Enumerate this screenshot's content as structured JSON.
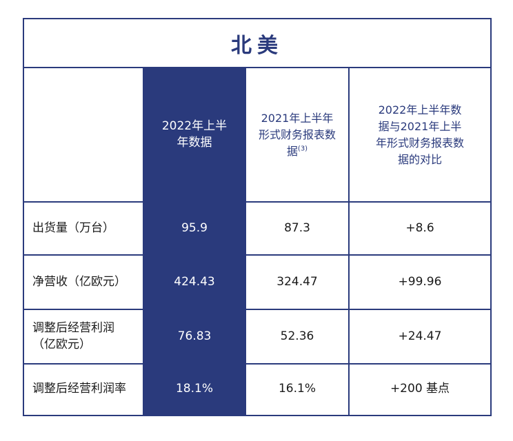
{
  "title": "北美",
  "headers": {
    "col1": "2022年上半年数据",
    "col2": "2021年上半年形式财务报表数据",
    "col2_sup": "(3)",
    "col3": "2022年上半年数据与2021年上半年形式财务报表数据的对比"
  },
  "rows": [
    {
      "label": "出货量（万台）",
      "v1": "95.9",
      "v2": "87.3",
      "v3": "+8.6"
    },
    {
      "label": "净营收（亿欧元）",
      "v1": "424.43",
      "v2": "324.47",
      "v3": "+99.96"
    },
    {
      "label": "调整后经营利润（亿欧元）",
      "v1": "76.83",
      "v2": "52.36",
      "v3": "+24.47"
    },
    {
      "label": "调整后经营利润率",
      "v1": "18.1%",
      "v2": "16.1%",
      "v3": "+200 基点"
    }
  ],
  "colors": {
    "accent": "#2a3a7c",
    "text": "#1a1a1a",
    "background": "#ffffff"
  }
}
